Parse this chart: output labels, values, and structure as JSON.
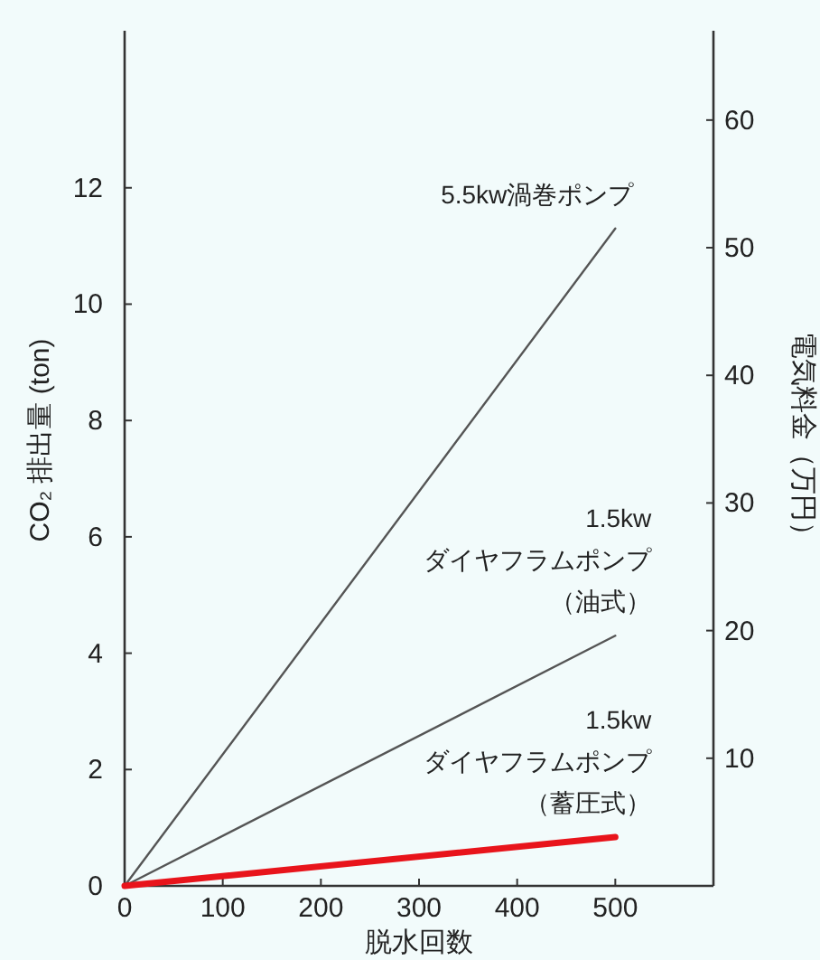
{
  "chart_data": {
    "type": "line",
    "xlabel": "脱水回数",
    "ylabel": "CO₂ 排出量 (ton)",
    "y2label": "電気料金（万円）",
    "xlim": [
      0,
      600
    ],
    "xticks": [
      0,
      100,
      200,
      300,
      400,
      500
    ],
    "ylim": [
      0,
      14.7
    ],
    "yticks": [
      0,
      2,
      4,
      6,
      8,
      10,
      12
    ],
    "y2lim": [
      0,
      67
    ],
    "y2ticks": [
      10,
      20,
      30,
      40,
      50,
      60
    ],
    "x": [
      0,
      500
    ],
    "series": [
      {
        "name": "5.5kw渦巻ポンプ",
        "color": "#555555",
        "values": [
          0,
          11.3
        ]
      },
      {
        "name": "1.5kw\nダイヤフラムポンプ（油式）",
        "color": "#555555",
        "values": [
          0,
          4.3
        ]
      },
      {
        "name": "1.5kw\nダイヤフラムポンプ（蓄圧式）",
        "color": "#e8141b",
        "values": [
          0,
          0.84
        ]
      }
    ],
    "grid": false
  }
}
